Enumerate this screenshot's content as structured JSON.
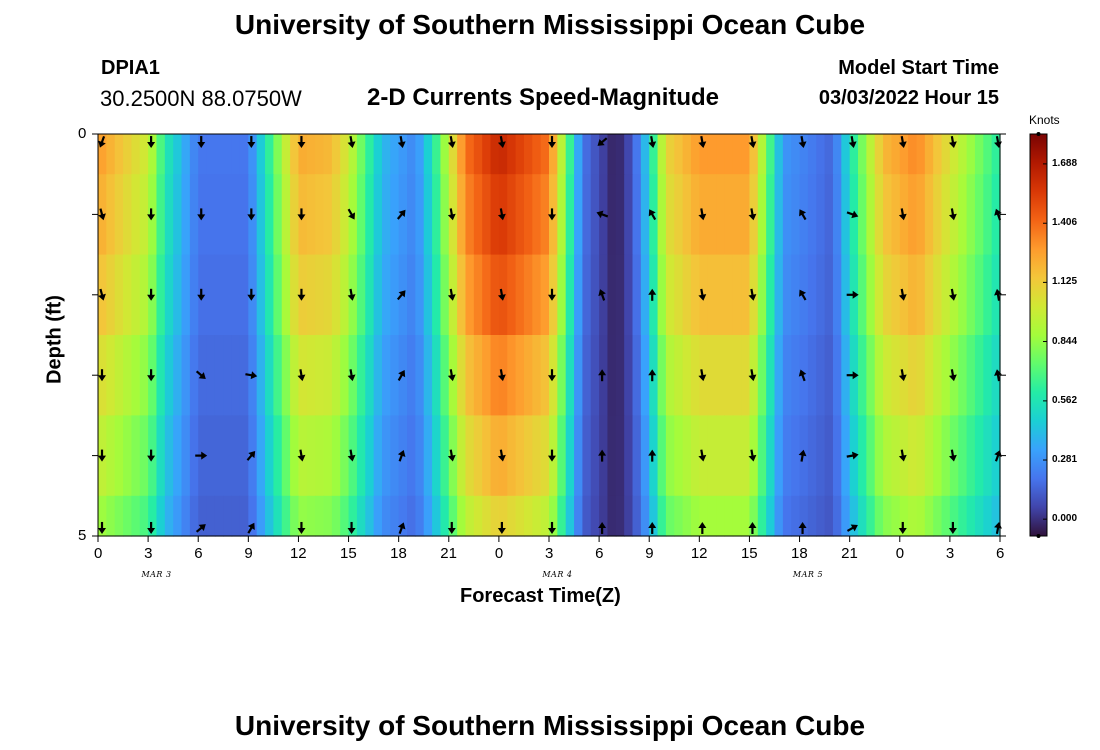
{
  "header": {
    "title_top": "University of Southern Mississippi Ocean Cube",
    "title_bottom": "University of Southern Mississippi Ocean Cube",
    "station": "DPIA1",
    "coords": "30.2500N  88.0750W",
    "chart_title": "2-D Currents Speed-Magnitude",
    "model_label": "Model Start Time",
    "model_time": "03/03/2022 Hour 15"
  },
  "colors": {
    "axis": "#000000",
    "arrow": "#000000",
    "colormap": [
      "#30123b",
      "#4145ab",
      "#4675ed",
      "#39a2fc",
      "#1bcfd4",
      "#24eca6",
      "#61fc6c",
      "#a4fc3b",
      "#d1e834",
      "#f3c63a",
      "#fe9b2d",
      "#f36315",
      "#d93806",
      "#b11901",
      "#7a0403"
    ]
  },
  "chart_data": {
    "type": "heatmap",
    "title": "2-D Currents Speed-Magnitude",
    "xlabel": "Forecast Time(Z)",
    "ylabel": "Depth (ft)",
    "x_ticks": [
      "0",
      "3",
      "6",
      "9",
      "12",
      "15",
      "18",
      "21",
      "0",
      "3",
      "6",
      "9",
      "12",
      "15",
      "18",
      "21",
      "0",
      "3",
      "6"
    ],
    "date_labels": [
      {
        "text": "MAR 3",
        "x_hours": 3.5
      },
      {
        "text": "MAR 4",
        "x_hours": 27.5
      },
      {
        "text": "MAR 5",
        "x_hours": 42.5
      }
    ],
    "y_ticks": [
      "0",
      "5"
    ],
    "y_range": [
      0,
      5
    ],
    "x_range_hours": [
      0,
      54
    ],
    "depth_levels": [
      0,
      1,
      2,
      3,
      4,
      5
    ],
    "colorbar": {
      "units": "Knots",
      "ticks": [
        "1.688",
        "1.406",
        "1.125",
        "0.844",
        "0.562",
        "0.281",
        "0.000"
      ],
      "tick_values": [
        1.688,
        1.406,
        1.125,
        0.844,
        0.562,
        0.281,
        0.0
      ],
      "range": [
        -0.08,
        1.83
      ]
    },
    "speed_profile_knots": [
      [
        0,
        1.3
      ],
      [
        3,
        1.0
      ],
      [
        4,
        0.6
      ],
      [
        6,
        0.2
      ],
      [
        9,
        0.2
      ],
      [
        10,
        0.55
      ],
      [
        12,
        1.25
      ],
      [
        14,
        1.2
      ],
      [
        15,
        1.0
      ],
      [
        17,
        0.4
      ],
      [
        19,
        0.25
      ],
      [
        20,
        0.55
      ],
      [
        22,
        1.4
      ],
      [
        24,
        1.65
      ],
      [
        27,
        1.4
      ],
      [
        28,
        0.8
      ],
      [
        29,
        0.2
      ],
      [
        31,
        -0.05
      ],
      [
        32,
        0.1
      ],
      [
        33,
        0.5
      ],
      [
        34,
        1.1
      ],
      [
        36,
        1.3
      ],
      [
        39,
        1.3
      ],
      [
        41,
        0.3
      ],
      [
        44,
        0.15
      ],
      [
        45,
        0.55
      ],
      [
        47,
        1.2
      ],
      [
        49,
        1.35
      ],
      [
        51,
        1.05
      ],
      [
        54,
        0.6
      ]
    ],
    "depth_scale": [
      1.0,
      0.95,
      0.9,
      0.82,
      0.75,
      0.65
    ],
    "arrow_rows_depth": [
      0.1,
      1.0,
      2.0,
      3.0,
      4.0,
      4.9
    ],
    "arrow_cols_hours": [
      0,
      3,
      6,
      9,
      12,
      15,
      18,
      21,
      24,
      27,
      30,
      33,
      36,
      39,
      42,
      45,
      48,
      51,
      54
    ],
    "arrow_dirs_deg": [
      [
        200,
        180,
        180,
        180,
        180,
        170,
        170,
        170,
        170,
        180,
        230,
        170,
        170,
        170,
        170,
        170,
        170,
        170,
        170
      ],
      [
        165,
        180,
        180,
        180,
        180,
        150,
        40,
        170,
        170,
        180,
        290,
        330,
        170,
        170,
        330,
        110,
        170,
        170,
        340
      ],
      [
        165,
        180,
        180,
        180,
        180,
        170,
        40,
        170,
        170,
        180,
        340,
        0,
        170,
        170,
        330,
        90,
        170,
        170,
        350
      ],
      [
        180,
        180,
        130,
        100,
        170,
        170,
        30,
        170,
        170,
        180,
        0,
        0,
        170,
        170,
        340,
        90,
        170,
        170,
        350
      ],
      [
        180,
        180,
        90,
        40,
        170,
        170,
        20,
        170,
        170,
        180,
        0,
        0,
        170,
        170,
        10,
        80,
        170,
        170,
        20
      ],
      [
        180,
        180,
        50,
        30,
        180,
        180,
        20,
        180,
        180,
        180,
        0,
        0,
        0,
        0,
        0,
        60,
        180,
        180,
        10
      ]
    ]
  }
}
